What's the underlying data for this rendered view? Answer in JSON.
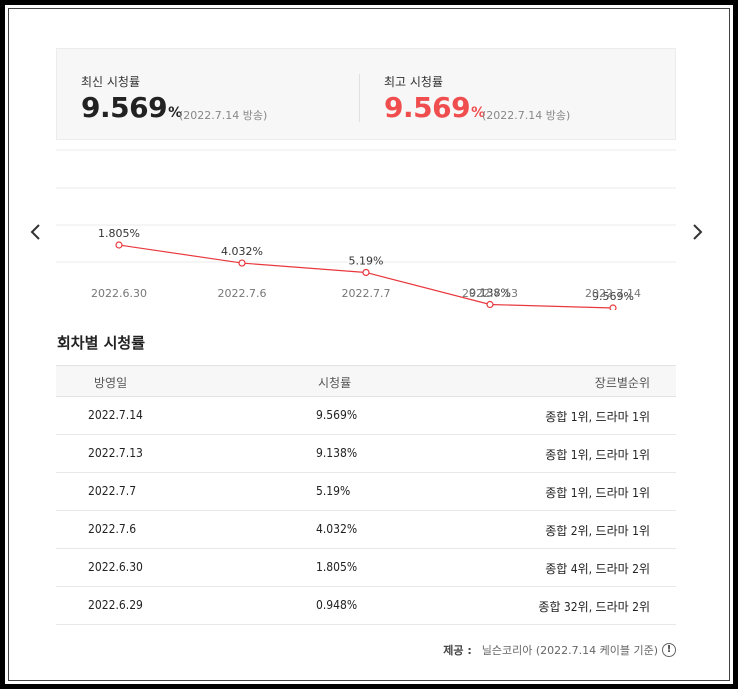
{
  "summary": {
    "latest": {
      "label": "최신 시청률",
      "value": "9.569",
      "unit": "%",
      "note": "(2022.7.14 방송)"
    },
    "highest": {
      "label": "최고 시청률",
      "value": "9.569",
      "unit": "%",
      "note": "(2022.7.14 방송)"
    },
    "highlight_color": "#f04e4e"
  },
  "nav": {
    "prev_icon": "chevron-left-icon",
    "next_icon": "chevron-right-icon"
  },
  "chart_data": {
    "type": "line",
    "categories": [
      "2022.6.30",
      "2022.7.6",
      "2022.7.7",
      "2022.7.13",
      "2022.7.14"
    ],
    "values": [
      1.805,
      4.032,
      5.19,
      9.138,
      9.569
    ],
    "data_labels": [
      "1.805%",
      "4.032%",
      "5.19%",
      "9.138%",
      "9.569%"
    ],
    "line_color": "#e8383d",
    "grid": true
  },
  "section": {
    "title": "회차별 시청률"
  },
  "table": {
    "headers": [
      "방영일",
      "시청률",
      "장르별순위"
    ],
    "rows": [
      {
        "date": "2022.7.14",
        "rating": "9.569%",
        "rank": "종합 1위, 드라마 1위"
      },
      {
        "date": "2022.7.13",
        "rating": "9.138%",
        "rank": "종합 1위, 드라마 1위"
      },
      {
        "date": "2022.7.7",
        "rating": "5.19%",
        "rank": "종합 1위, 드라마 1위"
      },
      {
        "date": "2022.7.6",
        "rating": "4.032%",
        "rank": "종합 2위, 드라마 1위"
      },
      {
        "date": "2022.6.30",
        "rating": "1.805%",
        "rank": "종합 4위, 드라마 2위"
      },
      {
        "date": "2022.6.29",
        "rating": "0.948%",
        "rank": "종합 32위, 드라마 2위"
      }
    ]
  },
  "source": {
    "label": "제공 :",
    "text": "닐슨코리아 (2022.7.14 케이블 기준)",
    "info_icon": "info-icon",
    "info_glyph": "!"
  }
}
